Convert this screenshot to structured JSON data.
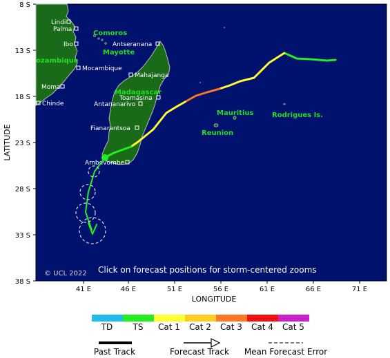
{
  "axes": {
    "y_title": "LATITUDE",
    "x_title": "LONGITUDE",
    "lat_ticks": [
      "8 S",
      "13 S",
      "18 S",
      "23 S",
      "28 S",
      "33 S",
      "38 S"
    ],
    "lon_ticks": [
      "41 E",
      "46 E",
      "51 E",
      "56 E",
      "61 E",
      "66 E",
      "71 E"
    ]
  },
  "regions": {
    "comoros": "Comoros",
    "mayotte": "Mayotte",
    "mozambique": "ozambique",
    "madagascar": "Madagascar",
    "mauritius": "Mauritius",
    "reunion": "Reunion",
    "rodrigues": "Rodrigues Is."
  },
  "cities": {
    "lindi": "Lindi",
    "palma": "Palma",
    "ibo": "Ibo",
    "mocambique": "Mocambique",
    "moma": "Moma",
    "chinde": "Chinde",
    "antseranana": "Antseranana",
    "mahajanga": "Mahajanga",
    "toamasina": "Toamasina",
    "antananarivo": "Antananarivo",
    "fianarantsoa": "Fianarantsoa",
    "ambovombe": "Ambovombe"
  },
  "note": "Click on forecast positions for storm-centered zooms",
  "copyright": "© UCL 2022",
  "legend": {
    "categories": [
      {
        "label": "TD",
        "color": "#22bbee"
      },
      {
        "label": "TS",
        "color": "#22ee22"
      },
      {
        "label": "Cat 1",
        "color": "#ffff33"
      },
      {
        "label": "Cat 2",
        "color": "#ffcc22"
      },
      {
        "label": "Cat 3",
        "color": "#ff7722"
      },
      {
        "label": "Cat 4",
        "color": "#ee1111"
      },
      {
        "label": "Cat 5",
        "color": "#cc22cc"
      }
    ],
    "past_track": "Past Track",
    "forecast_track": "Forecast Track",
    "mean_error": "Mean Forecast Error"
  },
  "colors": {
    "ocean": "#00116e",
    "land": "#196b1a",
    "coast": "#bbbbbb"
  }
}
